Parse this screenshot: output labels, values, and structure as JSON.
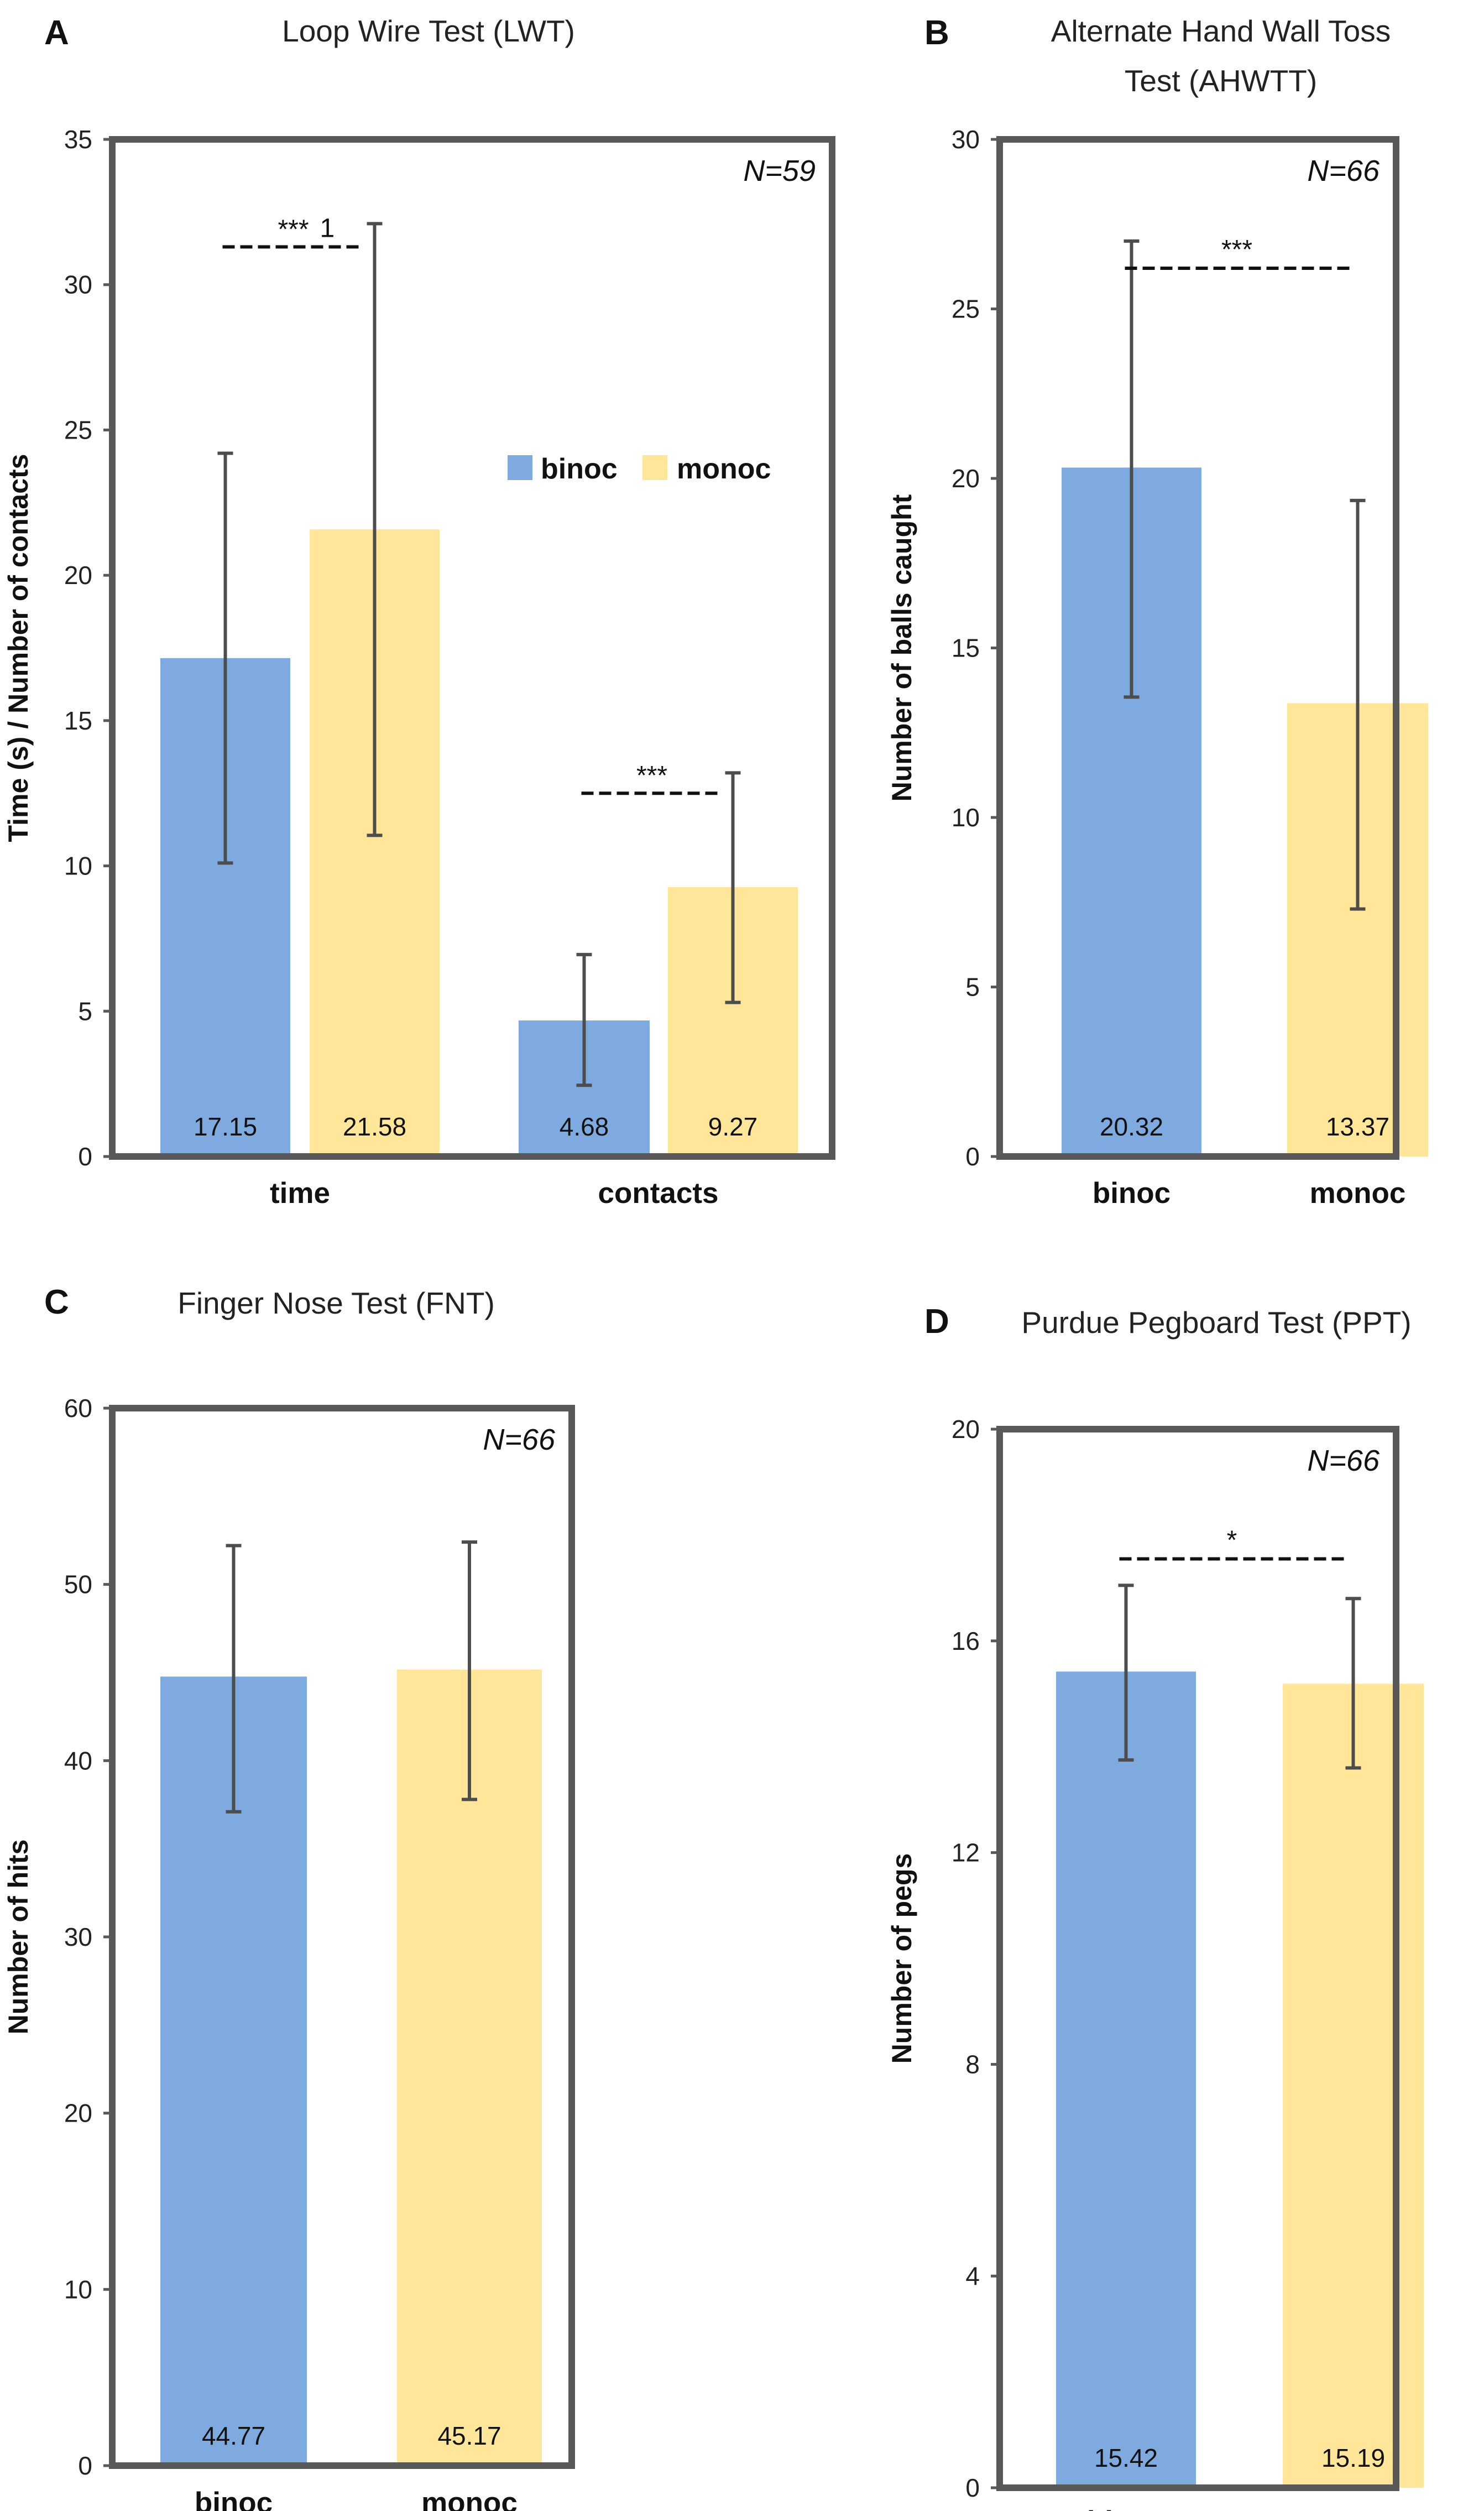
{
  "colors": {
    "binoc": "#7FAADF",
    "monoc": "#FFE699"
  },
  "chart_data": [
    {
      "letter": "A",
      "title": "Loop Wire Test (LWT)",
      "type": "bar",
      "ylabel": "Time (s) / Number of contacts",
      "ylim": [
        0,
        35
      ],
      "yticks": [
        "0",
        "5",
        "10",
        "15",
        "20",
        "25",
        "30",
        "35"
      ],
      "n_label": "N=59",
      "categories": [
        "time",
        "contacts"
      ],
      "series": [
        {
          "name": "binoc",
          "values": [
            17.15,
            4.68
          ],
          "err_low": [
            10.1,
            2.45
          ],
          "err_high": [
            24.2,
            6.95
          ],
          "value_labels": [
            "17.15",
            "4.68"
          ]
        },
        {
          "name": "monoc",
          "values": [
            21.58,
            9.27
          ],
          "err_low": [
            11.05,
            5.3
          ],
          "err_high": [
            32.1,
            13.2
          ],
          "value_labels": [
            "21.58",
            "9.27"
          ]
        }
      ],
      "legend": {
        "entries": [
          "binoc",
          "monoc"
        ],
        "position": "inside"
      },
      "significance": [
        {
          "category": 0,
          "label": "***",
          "superscript": "1",
          "y": 31.3
        },
        {
          "category": 1,
          "label": "***",
          "y": 12.5
        }
      ]
    },
    {
      "letter": "B",
      "title": [
        "Alternate Hand Wall Toss",
        "Test (AHWTT)"
      ],
      "type": "bar",
      "ylabel": "Number of balls caught",
      "ylim": [
        0,
        30
      ],
      "yticks": [
        "0",
        "5",
        "10",
        "15",
        "20",
        "25",
        "30"
      ],
      "n_label": "N=66",
      "categories": [
        "binoc",
        "monoc"
      ],
      "values": [
        20.32,
        13.37
      ],
      "err_low": [
        13.55,
        7.3
      ],
      "err_high": [
        27.0,
        19.35
      ],
      "value_labels": [
        "20.32",
        "13.37"
      ],
      "significance": {
        "label": "***",
        "y": 26.2
      }
    },
    {
      "letter": "C",
      "title": "Finger Nose Test (FNT)",
      "type": "bar",
      "ylabel": "Number of hits",
      "ylim": [
        0,
        60
      ],
      "yticks": [
        "0",
        "10",
        "20",
        "30",
        "40",
        "50",
        "60"
      ],
      "n_label": "N=66",
      "categories": [
        "binoc",
        "monoc"
      ],
      "values": [
        44.77,
        45.17
      ],
      "err_low": [
        37.1,
        37.8
      ],
      "err_high": [
        52.2,
        52.4
      ],
      "value_labels": [
        "44.77",
        "45.17"
      ],
      "significance": null
    },
    {
      "letter": "D",
      "title": "Purdue Pegboard Test (PPT)",
      "type": "bar",
      "ylabel": "Number of pegs",
      "ylim": [
        0,
        20
      ],
      "yticks": [
        "0",
        "4",
        "8",
        "12",
        "16",
        "20"
      ],
      "n_label": "N=66",
      "categories": [
        "binoc",
        "monoc"
      ],
      "values": [
        15.42,
        15.19
      ],
      "err_low": [
        13.75,
        13.6
      ],
      "err_high": [
        17.05,
        16.8
      ],
      "value_labels": [
        "15.42",
        "15.19"
      ],
      "significance": {
        "label": "*",
        "y": 17.55
      }
    }
  ]
}
